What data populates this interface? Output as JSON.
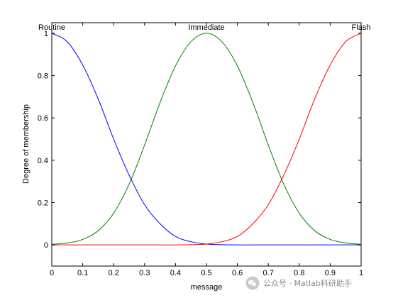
{
  "chart_data": {
    "type": "line",
    "title": "",
    "xlabel": "message",
    "ylabel": "Degree of membership",
    "xlim": [
      0,
      1
    ],
    "ylim": [
      -0.1,
      1.05
    ],
    "xticks": [
      0,
      0.1,
      0.2,
      0.3,
      0.4,
      0.5,
      0.6,
      0.7,
      0.8,
      0.9,
      1
    ],
    "xtick_labels": [
      "0",
      "0.1",
      "0.2",
      "0.3",
      "0.4",
      "0.5",
      "0.6",
      "0.7",
      "0.8",
      "0.9",
      "1"
    ],
    "yticks": [
      0,
      0.2,
      0.4,
      0.6,
      0.8,
      1
    ],
    "ytick_labels": [
      "0",
      "0.2",
      "0.4",
      "0.6",
      "0.8",
      "1"
    ],
    "grid": false,
    "x": [
      0,
      0.05,
      0.1,
      0.15,
      0.2,
      0.25,
      0.3,
      0.35,
      0.4,
      0.45,
      0.5,
      0.55,
      0.6,
      0.65,
      0.7,
      0.75,
      0.8,
      0.85,
      0.9,
      0.95,
      1
    ],
    "series": [
      {
        "name": "Routine",
        "color": "#0000ff",
        "values": [
          1,
          0.96,
          0.85,
          0.69,
          0.5,
          0.33,
          0.19,
          0.1,
          0.04,
          0.015,
          0.004,
          0.001,
          0,
          0,
          0,
          0,
          0,
          0,
          0,
          0,
          0
        ]
      },
      {
        "name": "Immediate",
        "color": "#008000",
        "values": [
          0.003,
          0.009,
          0.026,
          0.067,
          0.15,
          0.287,
          0.472,
          0.673,
          0.846,
          0.96,
          1,
          0.96,
          0.846,
          0.673,
          0.472,
          0.287,
          0.15,
          0.067,
          0.026,
          0.009,
          0.003
        ]
      },
      {
        "name": "Flash",
        "color": "#ff0000",
        "values": [
          0,
          0,
          0,
          0,
          0,
          0,
          0,
          0,
          0,
          0.001,
          0.004,
          0.015,
          0.04,
          0.1,
          0.19,
          0.33,
          0.5,
          0.69,
          0.85,
          0.96,
          1
        ]
      }
    ],
    "annotations": [
      {
        "text": "Routine",
        "x": 0
      },
      {
        "text": "Immediate",
        "x": 0.5
      },
      {
        "text": "Flash",
        "x": 1
      }
    ]
  },
  "watermark": {
    "text": "公众号 · Matlab科研助手",
    "icon": "wechat-icon"
  }
}
